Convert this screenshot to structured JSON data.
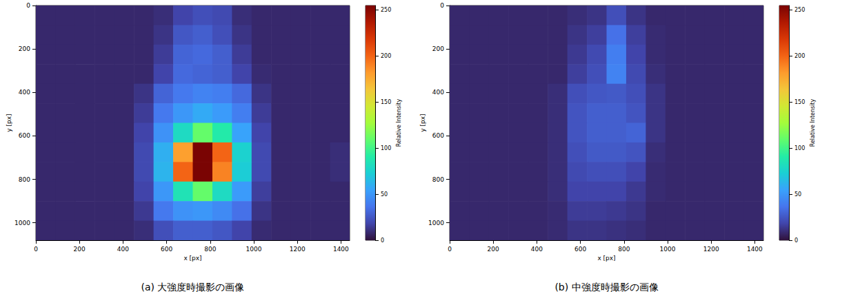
{
  "chart_data": [
    {
      "type": "heatmap",
      "title": "(a) 大強度時撮影の画像",
      "x_label": "x [px]",
      "y_label": "y [px]",
      "xlim": [
        0,
        1440
      ],
      "ylim": [
        1080,
        0
      ],
      "xticks": [
        0,
        200,
        400,
        600,
        800,
        1000,
        1200,
        1400
      ],
      "yticks": [
        0,
        200,
        400,
        600,
        800,
        1000
      ],
      "x_edges": [
        0,
        90,
        180,
        270,
        360,
        450,
        540,
        630,
        720,
        810,
        900,
        990,
        1080,
        1170,
        1260,
        1350,
        1440
      ],
      "y_edges": [
        0,
        90,
        180,
        270,
        360,
        450,
        540,
        630,
        720,
        810,
        900,
        990,
        1080
      ],
      "cells": [
        [
          8,
          8,
          8,
          8,
          8,
          8,
          10,
          18,
          22,
          20,
          10,
          8,
          8,
          8,
          8,
          8
        ],
        [
          8,
          8,
          8,
          8,
          8,
          8,
          12,
          25,
          28,
          22,
          12,
          8,
          8,
          8,
          8,
          8
        ],
        [
          8,
          8,
          8,
          8,
          8,
          8,
          15,
          30,
          32,
          28,
          15,
          8,
          8,
          8,
          8,
          8
        ],
        [
          8,
          8,
          8,
          8,
          8,
          8,
          18,
          32,
          30,
          28,
          18,
          9,
          8,
          8,
          8,
          8
        ],
        [
          8,
          8,
          8,
          8,
          8,
          12,
          30,
          38,
          42,
          40,
          32,
          12,
          8,
          8,
          8,
          8
        ],
        [
          8,
          8,
          8,
          8,
          8,
          15,
          38,
          50,
          58,
          52,
          40,
          15,
          8,
          8,
          8,
          8
        ],
        [
          8,
          8,
          8,
          8,
          8,
          18,
          48,
          80,
          110,
          90,
          55,
          18,
          8,
          8,
          8,
          8
        ],
        [
          8,
          8,
          8,
          8,
          8,
          20,
          60,
          180,
          255,
          200,
          75,
          20,
          8,
          8,
          8,
          10
        ],
        [
          8,
          8,
          8,
          8,
          8,
          20,
          62,
          200,
          255,
          190,
          72,
          20,
          8,
          8,
          8,
          10
        ],
        [
          8,
          8,
          8,
          8,
          8,
          18,
          50,
          85,
          110,
          80,
          52,
          16,
          8,
          8,
          8,
          8
        ],
        [
          8,
          8,
          8,
          8,
          8,
          14,
          38,
          48,
          50,
          45,
          35,
          12,
          8,
          8,
          8,
          8
        ],
        [
          8,
          8,
          8,
          8,
          8,
          10,
          22,
          28,
          28,
          25,
          18,
          9,
          8,
          8,
          8,
          8
        ]
      ],
      "colorbar": {
        "label": "Relative Intensity",
        "range": [
          0,
          255
        ],
        "ticks": [
          0,
          50,
          100,
          150,
          200,
          250
        ]
      }
    },
    {
      "type": "heatmap",
      "title": "(b) 中強度時撮影の画像",
      "x_label": "x [px]",
      "y_label": "y [px]",
      "xlim": [
        0,
        1440
      ],
      "ylim": [
        1080,
        0
      ],
      "xticks": [
        0,
        200,
        400,
        600,
        800,
        1000,
        1200,
        1400
      ],
      "yticks": [
        0,
        200,
        400,
        600,
        800,
        1000
      ],
      "x_edges": [
        0,
        90,
        180,
        270,
        360,
        450,
        540,
        630,
        720,
        810,
        900,
        990,
        1080,
        1170,
        1260,
        1350,
        1440
      ],
      "y_edges": [
        0,
        90,
        180,
        270,
        360,
        450,
        540,
        630,
        720,
        810,
        900,
        990,
        1080
      ],
      "cells": [
        [
          8,
          8,
          8,
          8,
          8,
          8,
          10,
          12,
          22,
          12,
          8,
          8,
          8,
          8,
          8,
          8
        ],
        [
          8,
          8,
          8,
          8,
          8,
          8,
          12,
          16,
          35,
          16,
          9,
          8,
          8,
          8,
          8,
          8
        ],
        [
          8,
          8,
          8,
          8,
          8,
          8,
          14,
          20,
          40,
          18,
          9,
          8,
          8,
          8,
          8,
          8
        ],
        [
          8,
          8,
          8,
          8,
          8,
          8,
          16,
          22,
          42,
          20,
          10,
          8,
          8,
          8,
          8,
          8
        ],
        [
          8,
          8,
          8,
          8,
          8,
          10,
          22,
          25,
          26,
          22,
          12,
          8,
          8,
          8,
          8,
          8
        ],
        [
          8,
          8,
          8,
          8,
          8,
          10,
          24,
          28,
          28,
          24,
          12,
          8,
          8,
          8,
          8,
          8
        ],
        [
          8,
          8,
          8,
          8,
          8,
          10,
          24,
          28,
          28,
          30,
          12,
          8,
          8,
          8,
          8,
          8
        ],
        [
          8,
          8,
          8,
          8,
          8,
          10,
          22,
          26,
          26,
          24,
          10,
          8,
          8,
          8,
          8,
          8
        ],
        [
          8,
          8,
          8,
          8,
          8,
          10,
          20,
          22,
          22,
          18,
          9,
          8,
          8,
          8,
          8,
          8
        ],
        [
          8,
          8,
          8,
          8,
          8,
          10,
          18,
          18,
          18,
          14,
          9,
          8,
          8,
          8,
          8,
          8
        ],
        [
          8,
          8,
          8,
          8,
          8,
          9,
          15,
          15,
          14,
          12,
          8,
          8,
          8,
          8,
          8,
          8
        ],
        [
          8,
          8,
          8,
          8,
          8,
          9,
          12,
          12,
          11,
          10,
          8,
          8,
          8,
          8,
          8,
          8
        ]
      ],
      "colorbar": {
        "label": "Relative Intensity",
        "range": [
          0,
          255
        ],
        "ticks": [
          0,
          50,
          100,
          150,
          200,
          250
        ]
      }
    }
  ]
}
